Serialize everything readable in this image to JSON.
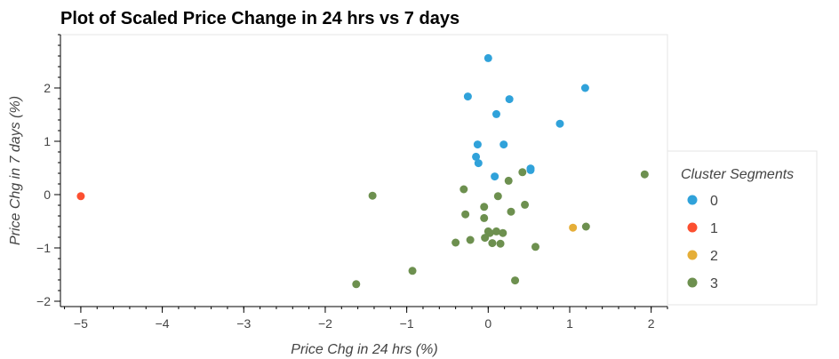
{
  "chart_data": {
    "type": "scatter",
    "title": "Plot of Scaled Price Change in 24 hrs vs 7 days",
    "xlabel": "Price Chg in 24 hrs (%)",
    "ylabel": "Price Chg in 7 days (%)",
    "xlim": [
      -5.25,
      2.2
    ],
    "ylim": [
      -2.1,
      3.0
    ],
    "x_ticks": [
      -5,
      -4,
      -3,
      -2,
      -1,
      0,
      1,
      2
    ],
    "y_ticks": [
      -2,
      -1,
      0,
      1,
      2
    ],
    "x_tick_labels": [
      "−5",
      "−4",
      "−3",
      "−2",
      "−1",
      "0",
      "1",
      "2"
    ],
    "y_tick_labels": [
      "−2",
      "−1",
      "0",
      "1",
      "2"
    ],
    "grid": false,
    "legend": {
      "title": "Cluster Segments",
      "placement": "right"
    },
    "series": [
      {
        "name": "0",
        "color": "#30a2da",
        "points": [
          {
            "x": 0.0,
            "y": 2.56
          },
          {
            "x": 1.19,
            "y": 2.0
          },
          {
            "x": -0.25,
            "y": 1.84
          },
          {
            "x": 0.26,
            "y": 1.79
          },
          {
            "x": 0.1,
            "y": 1.51
          },
          {
            "x": 0.88,
            "y": 1.33
          },
          {
            "x": -0.13,
            "y": 0.94
          },
          {
            "x": 0.19,
            "y": 0.94
          },
          {
            "x": -0.15,
            "y": 0.71
          },
          {
            "x": -0.12,
            "y": 0.59
          },
          {
            "x": 0.52,
            "y": 0.49
          },
          {
            "x": 0.52,
            "y": 0.46
          },
          {
            "x": 0.08,
            "y": 0.34
          }
        ]
      },
      {
        "name": "1",
        "color": "#fc4f30",
        "points": [
          {
            "x": -5.0,
            "y": -0.03
          }
        ]
      },
      {
        "name": "2",
        "color": "#e5ae38",
        "points": [
          {
            "x": 1.04,
            "y": -0.62
          }
        ]
      },
      {
        "name": "3",
        "color": "#6d904f",
        "points": [
          {
            "x": 1.92,
            "y": 0.38
          },
          {
            "x": 0.42,
            "y": 0.42
          },
          {
            "x": 0.25,
            "y": 0.26
          },
          {
            "x": -0.3,
            "y": 0.1
          },
          {
            "x": -1.42,
            "y": -0.02
          },
          {
            "x": 0.12,
            "y": -0.03
          },
          {
            "x": 0.45,
            "y": -0.19
          },
          {
            "x": -0.05,
            "y": -0.23
          },
          {
            "x": 0.28,
            "y": -0.32
          },
          {
            "x": -0.28,
            "y": -0.37
          },
          {
            "x": -0.05,
            "y": -0.44
          },
          {
            "x": 1.2,
            "y": -0.6
          },
          {
            "x": 0.0,
            "y": -0.69
          },
          {
            "x": 0.1,
            "y": -0.69
          },
          {
            "x": 0.18,
            "y": -0.72
          },
          {
            "x": 0.02,
            "y": -0.72
          },
          {
            "x": -0.04,
            "y": -0.81
          },
          {
            "x": -0.22,
            "y": -0.85
          },
          {
            "x": -0.4,
            "y": -0.9
          },
          {
            "x": 0.05,
            "y": -0.91
          },
          {
            "x": 0.15,
            "y": -0.92
          },
          {
            "x": 0.58,
            "y": -0.98
          },
          {
            "x": -0.93,
            "y": -1.43
          },
          {
            "x": 0.33,
            "y": -1.61
          },
          {
            "x": -1.62,
            "y": -1.68
          }
        ]
      }
    ]
  }
}
